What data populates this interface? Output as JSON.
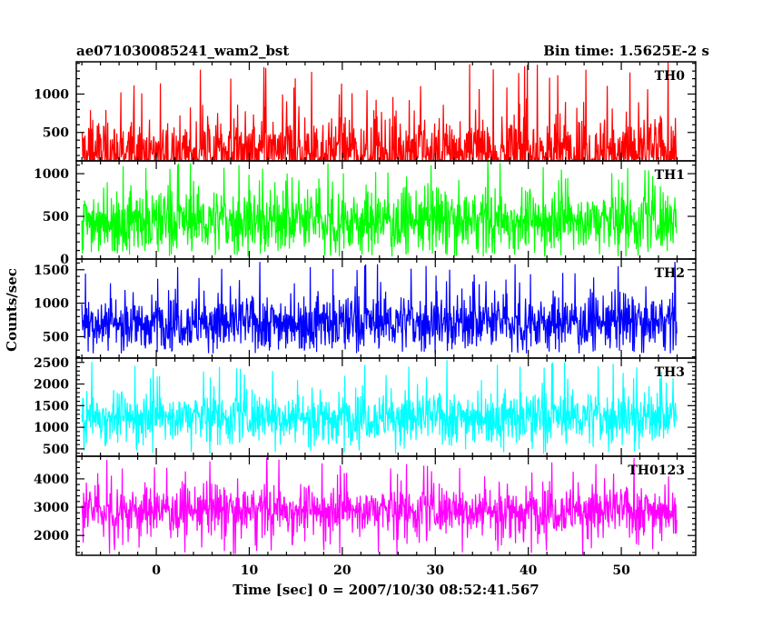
{
  "chart_data": {
    "type": "line",
    "title_left": "ae071030085241_wam2_bst",
    "title_right": "Bin time: 1.5625E-2 s",
    "xlabel": "Time [sec] 0 = 2007/10/30 08:52:41.567",
    "ylabel": "Counts/sec",
    "xlim": [
      -8.6,
      58.0
    ],
    "xticks": [
      0,
      10,
      20,
      30,
      40,
      50
    ],
    "x_range_data": [
      -8.0,
      56.0
    ],
    "bin_time": 0.015625,
    "panels": [
      {
        "label": "TH0",
        "color": "#ff0000",
        "ylim": [
          130,
          1420
        ],
        "yticks": [
          500,
          1000
        ],
        "base": 250,
        "spread": 240,
        "peak": 1420,
        "min": 130
      },
      {
        "label": "TH1",
        "color": "#00ff00",
        "ylim": [
          0,
          1150
        ],
        "yticks": [
          0,
          500,
          1000
        ],
        "base": 450,
        "spread": 180,
        "peak": 1150,
        "min": 30
      },
      {
        "label": "TH2",
        "color": "#0000ff",
        "ylim": [
          180,
          1660
        ],
        "yticks": [
          500,
          1000,
          1500
        ],
        "base": 720,
        "spread": 200,
        "peak": 1620,
        "min": 250
      },
      {
        "label": "TH3",
        "color": "#00ffff",
        "ylim": [
          330,
          2600
        ],
        "yticks": [
          500,
          1000,
          1500,
          2000,
          2500
        ],
        "base": 1250,
        "spread": 280,
        "peak": 2560,
        "min": 380
      },
      {
        "label": "TH0123",
        "color": "#ff00ff",
        "ylim": [
          1300,
          4800
        ],
        "yticks": [
          2000,
          3000,
          4000
        ],
        "base": 2900,
        "spread": 420,
        "peak": 4750,
        "min": 1320
      }
    ]
  }
}
